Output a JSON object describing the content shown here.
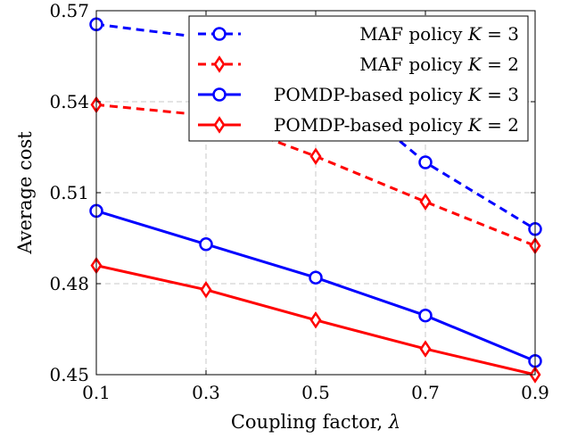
{
  "chart_data": {
    "type": "line",
    "xlabel": "Coupling factor, λ",
    "ylabel": "Average cost",
    "x": [
      0.1,
      0.3,
      0.5,
      0.7,
      0.9
    ],
    "x_tick_labels": [
      "0.1",
      "0.3",
      "0.5",
      "0.7",
      "0.9"
    ],
    "y_tick_labels": [
      "0.45",
      "0.48",
      "0.51",
      "0.54",
      "0.57"
    ],
    "y_ticks": [
      0.45,
      0.48,
      0.51,
      0.54,
      0.57
    ],
    "xlim": [
      0.1,
      0.9
    ],
    "ylim": [
      0.45,
      0.57
    ],
    "grid": true,
    "legend_position": "top-right",
    "series": [
      {
        "name": "MAF policy K = 3",
        "name_text": "MAF policy ",
        "name_var": "K",
        "name_val": " = 3",
        "color": "#0000ff",
        "marker": "circle",
        "dashed": true,
        "values": [
          0.5655,
          0.561,
          0.55,
          0.52,
          0.498
        ]
      },
      {
        "name": "MAF policy K = 2",
        "name_text": "MAF policy ",
        "name_var": "K",
        "name_val": " = 2",
        "color": "#ff0000",
        "marker": "diamond",
        "dashed": true,
        "values": [
          0.539,
          0.5355,
          0.522,
          0.507,
          0.4925
        ]
      },
      {
        "name": "POMDP-based policy K = 3",
        "name_text": "POMDP-based policy ",
        "name_var": "K",
        "name_val": " = 3",
        "color": "#0000ff",
        "marker": "circle",
        "dashed": false,
        "values": [
          0.504,
          0.493,
          0.482,
          0.4695,
          0.4545
        ]
      },
      {
        "name": "POMDP-based policy K = 2",
        "name_text": "POMDP-based policy ",
        "name_var": "K",
        "name_val": " = 2",
        "color": "#ff0000",
        "marker": "diamond",
        "dashed": false,
        "values": [
          0.486,
          0.478,
          0.468,
          0.4585,
          0.45
        ]
      }
    ]
  }
}
